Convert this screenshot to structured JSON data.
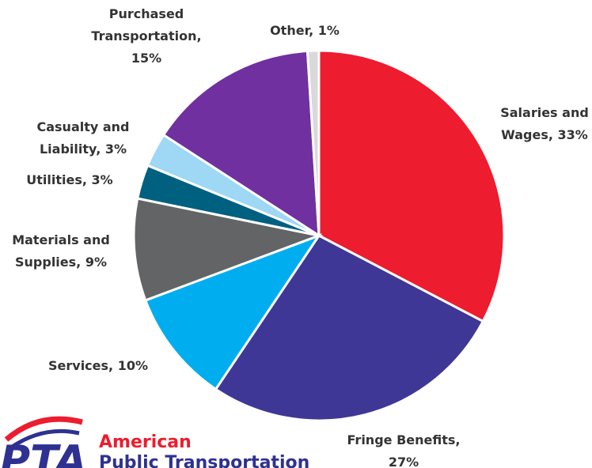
{
  "chart_data": {
    "type": "pie",
    "categories": [
      [
        "Salaries and",
        "Wages, 33%"
      ],
      [
        "Fringe Benefits,",
        "27%"
      ],
      [
        "Services, 10%"
      ],
      [
        "Materials and",
        "Supplies, 9%"
      ],
      [
        "Utilities, 3%"
      ],
      [
        "Casualty and",
        "Liability, 3%"
      ],
      [
        "Purchased",
        "Transportation,",
        "15%"
      ],
      [
        "Other, 1%"
      ]
    ],
    "values": [
      33,
      27,
      10,
      9,
      3,
      3,
      15,
      1
    ],
    "colors": [
      "#ed1c2e",
      "#3f3796",
      "#00aeef",
      "#636466",
      "#006080",
      "#9ed8f5",
      "#7030a0",
      "#d9d9d9"
    ]
  },
  "logo": {
    "mark": "PTA",
    "line1": "American",
    "line2": "Public Transportation"
  }
}
